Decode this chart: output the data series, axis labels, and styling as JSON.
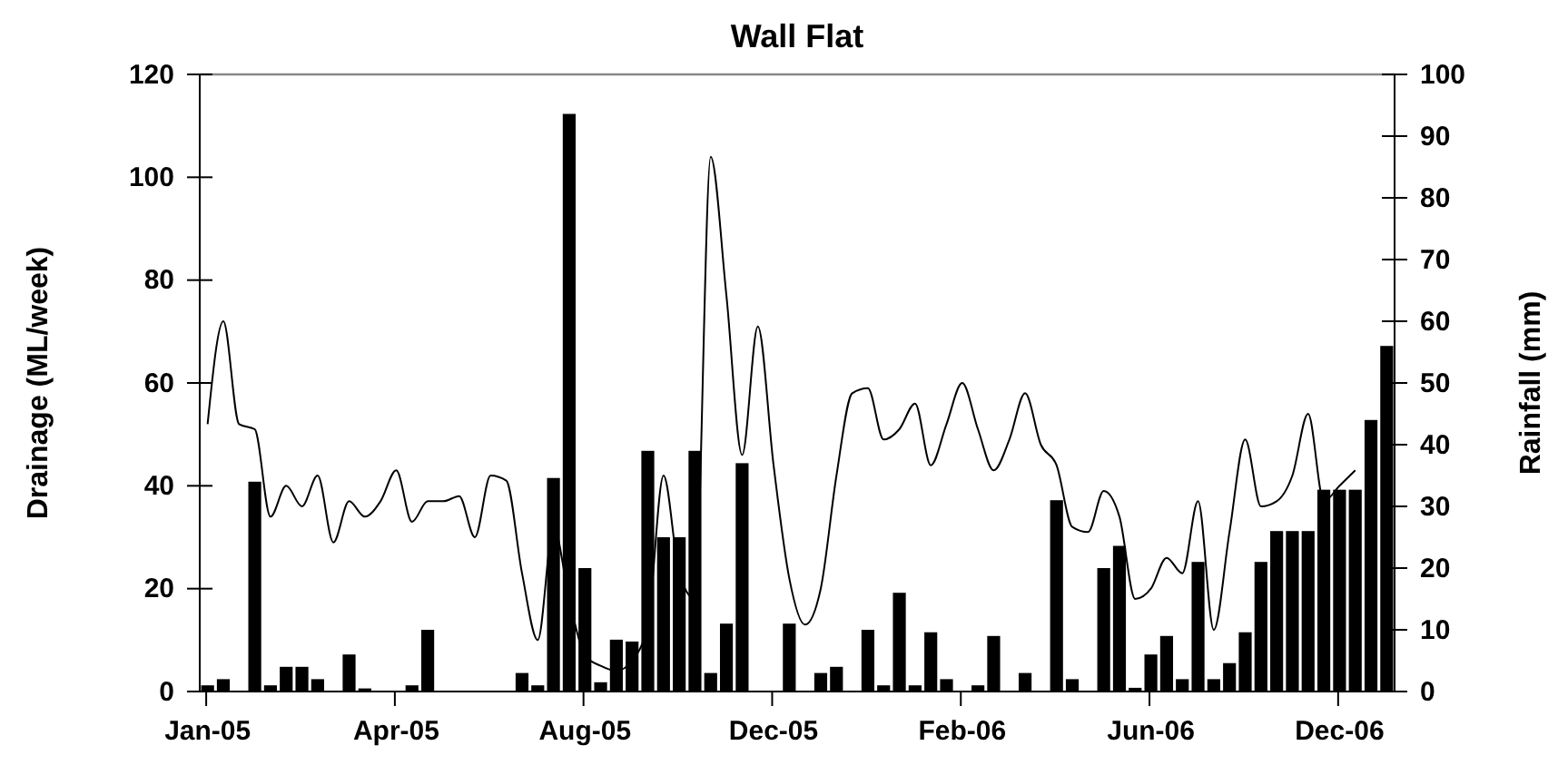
{
  "chart_data": {
    "type": "bar",
    "title": "Wall Flat",
    "ylabel": "Drainage (ML/week)",
    "y2label": "Rainfall (mm)",
    "categories": [
      "Jan-05",
      null,
      null,
      null,
      null,
      null,
      null,
      null,
      null,
      null,
      null,
      null,
      "Apr-05",
      null,
      null,
      null,
      null,
      null,
      null,
      null,
      null,
      null,
      null,
      null,
      "Aug-05",
      null,
      null,
      null,
      null,
      null,
      null,
      null,
      null,
      null,
      null,
      null,
      "Dec-05",
      null,
      null,
      null,
      null,
      null,
      null,
      null,
      null,
      null,
      null,
      null,
      "Feb-06",
      null,
      null,
      null,
      null,
      null,
      null,
      null,
      null,
      null,
      null,
      null,
      "Jun-06",
      null,
      null,
      null,
      null,
      null,
      null,
      null,
      null,
      null,
      null,
      null,
      "Dec-06",
      null,
      null,
      null
    ],
    "ylim": [
      0,
      120
    ],
    "yticks": [
      0,
      20,
      40,
      60,
      80,
      100,
      120
    ],
    "y2lim": [
      0,
      100
    ],
    "y2ticks": [
      0,
      10,
      20,
      30,
      40,
      50,
      60,
      70,
      80,
      90,
      100
    ],
    "series": [
      {
        "axis": "y2",
        "color": "#000000",
        "values": [
          1,
          2,
          null,
          34,
          1,
          4,
          4,
          2,
          null,
          6,
          0.5,
          null,
          null,
          1,
          10,
          null,
          null,
          null,
          null,
          null,
          3,
          1,
          34.6,
          93.6,
          20,
          1.5,
          8.4,
          8.1,
          39,
          25,
          25,
          39,
          3,
          11,
          37,
          null,
          null,
          11,
          null,
          3,
          4,
          null,
          10,
          1,
          16,
          1,
          9.6,
          2,
          null,
          1,
          9,
          null,
          3,
          null,
          31,
          2,
          null,
          20,
          23.6,
          0.6,
          6,
          9,
          2,
          21,
          2,
          4.6,
          9.6,
          21,
          26,
          26,
          26,
          32.7,
          32.7,
          32.7,
          44,
          56
        ]
      },
      {
        "type": "line",
        "color": "#000000",
        "values": [
          52,
          72,
          52,
          51,
          34,
          40,
          36,
          42,
          29,
          37,
          34,
          37,
          43,
          33,
          37,
          37,
          38,
          30,
          42,
          41,
          23,
          10,
          32,
          18,
          7,
          5,
          4,
          6,
          13,
          42,
          23,
          18,
          104,
          77,
          46,
          71,
          44,
          22,
          13,
          20,
          42,
          58,
          59,
          49,
          51,
          56,
          44,
          52,
          60,
          51,
          43,
          49,
          58,
          48,
          44,
          32,
          31,
          39,
          34,
          18,
          20,
          26,
          23,
          37,
          12,
          31,
          49,
          36,
          37,
          42,
          54,
          37,
          40,
          43,
          null,
          null
        ]
      }
    ]
  }
}
